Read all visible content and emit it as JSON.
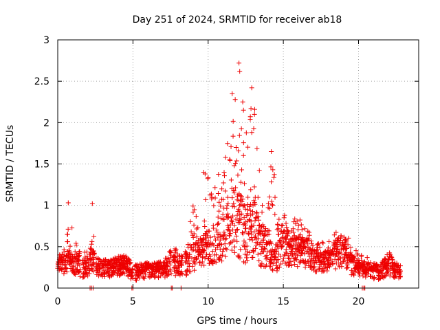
{
  "chart_data": {
    "type": "scatter",
    "title": "Day 251 of 2024, SRMTID for receiver ab18",
    "xlabel": "GPS time / hours",
    "ylabel": "SRMTID / TECUs",
    "xlim": [
      0,
      24
    ],
    "ylim": [
      0,
      3
    ],
    "xticks": [
      0,
      5,
      10,
      15,
      20
    ],
    "yticks": [
      0,
      0.5,
      1,
      1.5,
      2,
      2.5,
      3
    ],
    "ytick_labels": [
      "0",
      "0.5",
      "1",
      "1.5",
      "2",
      "2.5",
      "3"
    ],
    "grid": true,
    "marker": "plus",
    "series": [
      {
        "name": "SRMTID",
        "color": "#ee0000",
        "profile": [
          [
            0.0,
            0.28,
            0.12,
            0.35
          ],
          [
            0.5,
            0.3,
            0.15,
            0.55
          ],
          [
            0.8,
            0.32,
            0.18,
            0.9
          ],
          [
            1.2,
            0.3,
            0.12,
            0.55
          ],
          [
            1.6,
            0.25,
            0.1,
            0.45
          ],
          [
            2.0,
            0.25,
            0.1,
            0.45
          ],
          [
            2.3,
            0.35,
            0.15,
            0.75
          ],
          [
            2.6,
            0.25,
            0.12,
            0.38
          ],
          [
            3.5,
            0.24,
            0.1,
            0.35
          ],
          [
            4.0,
            0.26,
            0.1,
            0.38
          ],
          [
            4.5,
            0.28,
            0.12,
            0.45
          ],
          [
            5.0,
            0.18,
            0.06,
            0.28
          ],
          [
            6.0,
            0.22,
            0.1,
            0.32
          ],
          [
            7.0,
            0.22,
            0.1,
            0.32
          ],
          [
            7.5,
            0.3,
            0.12,
            0.5
          ],
          [
            8.0,
            0.25,
            0.1,
            0.5
          ],
          [
            8.5,
            0.3,
            0.1,
            0.45
          ],
          [
            9.0,
            0.45,
            0.15,
            1.0
          ],
          [
            9.5,
            0.4,
            0.15,
            0.8
          ],
          [
            10.0,
            0.5,
            0.2,
            1.35
          ],
          [
            10.5,
            0.55,
            0.25,
            1.3
          ],
          [
            11.0,
            0.6,
            0.25,
            1.6
          ],
          [
            11.5,
            0.8,
            0.3,
            2.3
          ],
          [
            12.0,
            0.8,
            0.25,
            2.7
          ],
          [
            12.5,
            0.65,
            0.2,
            2.1
          ],
          [
            13.0,
            0.75,
            0.25,
            2.4
          ],
          [
            13.5,
            0.5,
            0.15,
            1.2
          ],
          [
            14.0,
            0.5,
            0.2,
            1.2
          ],
          [
            14.3,
            0.35,
            0.15,
            1.7
          ],
          [
            14.7,
            0.4,
            0.15,
            0.9
          ],
          [
            15.0,
            0.55,
            0.2,
            0.95
          ],
          [
            15.5,
            0.5,
            0.2,
            0.9
          ],
          [
            16.0,
            0.45,
            0.2,
            0.85
          ],
          [
            16.5,
            0.45,
            0.2,
            0.8
          ],
          [
            17.0,
            0.35,
            0.15,
            0.6
          ],
          [
            17.5,
            0.3,
            0.15,
            0.55
          ],
          [
            18.0,
            0.35,
            0.15,
            0.65
          ],
          [
            18.5,
            0.4,
            0.15,
            0.7
          ],
          [
            19.0,
            0.45,
            0.2,
            0.8
          ],
          [
            19.5,
            0.3,
            0.12,
            0.55
          ],
          [
            20.0,
            0.25,
            0.12,
            0.45
          ],
          [
            20.5,
            0.22,
            0.1,
            0.38
          ],
          [
            21.0,
            0.2,
            0.08,
            0.3
          ],
          [
            21.5,
            0.2,
            0.08,
            0.32
          ],
          [
            22.0,
            0.28,
            0.1,
            0.45
          ],
          [
            22.5,
            0.2,
            0.1,
            0.32
          ],
          [
            22.8,
            0.2,
            0.1,
            0.3
          ]
        ],
        "gaps": [
          [
            1.5,
            1.65
          ],
          [
            2.45,
            2.55
          ],
          [
            5.0,
            5.12
          ],
          [
            7.55,
            7.7
          ],
          [
            8.3,
            8.45
          ]
        ],
        "zero_points": [
          2.15,
          2.25,
          2.35,
          4.93,
          5.0,
          7.55,
          7.62,
          8.2,
          20.25,
          20.35,
          20.42
        ],
        "outliers": [
          [
            0.7,
            1.03
          ],
          [
            2.3,
            1.02
          ],
          [
            11.6,
            2.35
          ],
          [
            12.05,
            2.72
          ],
          [
            12.1,
            2.62
          ],
          [
            12.3,
            2.25
          ],
          [
            12.35,
            2.15
          ],
          [
            12.9,
            2.42
          ],
          [
            12.85,
            2.17
          ],
          [
            12.8,
            2.04
          ],
          [
            12.9,
            1.88
          ],
          [
            14.2,
            1.65
          ],
          [
            14.3,
            1.43
          ],
          [
            9.7,
            1.4
          ],
          [
            9.8,
            1.38
          ],
          [
            13.6,
            1.0
          ]
        ]
      }
    ]
  }
}
